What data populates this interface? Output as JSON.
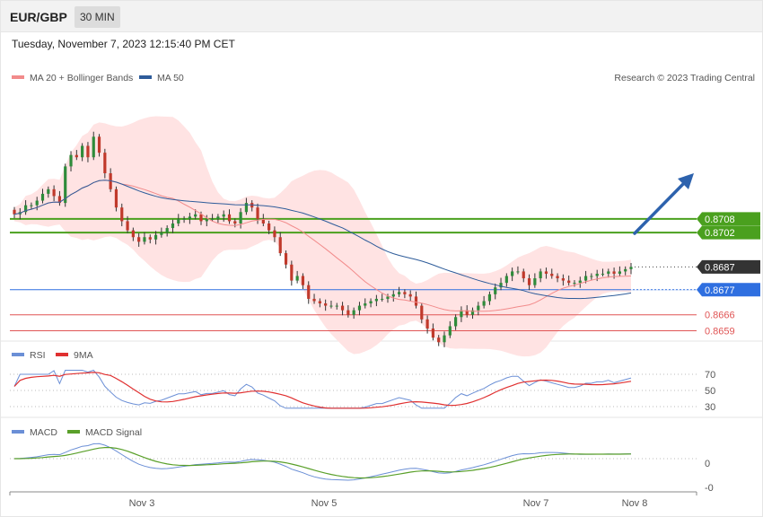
{
  "header": {
    "symbol": "EUR/GBP",
    "timeframe": "30 MIN",
    "datetime": "Tuesday, November 7, 2023 12:15:40 PM CET",
    "copyright": "Research © 2023 Trading Central"
  },
  "colors": {
    "bollinger": "#f28b8b",
    "band_fill": "#ffe3e3",
    "ma50": "#2e5c9a",
    "up": "#2e8b3a",
    "down": "#c0392b",
    "resistance": "#4aa01e",
    "support": "#e05555",
    "pivot": "#2f6fe0",
    "rsi": "#6b8fd6",
    "rsi_ma": "#e03030",
    "macd": "#6b8fd6",
    "macd_signal": "#5aa02a",
    "arrow": "#2d62ad"
  },
  "chart_data": [
    {
      "type": "candlestick",
      "panel": "price",
      "legend": [
        {
          "name": "MA 20 + Bollinger Bands",
          "color": "#f28b8b"
        },
        {
          "name": "MA 50",
          "color": "#2e5c9a"
        }
      ],
      "x_ticks": [
        "Nov 3",
        "Nov 5",
        "Nov 7",
        "Nov 8"
      ],
      "ylim": [
        0.86545,
        0.87685
      ],
      "levels": [
        {
          "value": 0.8708,
          "label": "0.8708",
          "kind": "resistance"
        },
        {
          "value": 0.8702,
          "label": "0.8702",
          "kind": "resistance"
        },
        {
          "value": 0.8687,
          "label": "0.8687",
          "kind": "last"
        },
        {
          "value": 0.8677,
          "label": "0.8677",
          "kind": "pivot"
        },
        {
          "value": 0.8666,
          "label": "0.8666",
          "kind": "support"
        },
        {
          "value": 0.8659,
          "label": "0.8659",
          "kind": "support"
        }
      ],
      "close": [
        0.871,
        0.8711,
        0.8714,
        0.8714,
        0.8716,
        0.8719,
        0.8721,
        0.8718,
        0.8715,
        0.8731,
        0.8736,
        0.8735,
        0.874,
        0.8735,
        0.8744,
        0.8737,
        0.8728,
        0.8721,
        0.8713,
        0.8707,
        0.8703,
        0.87,
        0.8698,
        0.87,
        0.8699,
        0.8701,
        0.8702,
        0.8704,
        0.8706,
        0.8708,
        0.8708,
        0.8709,
        0.871,
        0.8707,
        0.8708,
        0.8708,
        0.8709,
        0.871,
        0.8707,
        0.8706,
        0.8711,
        0.8715,
        0.8713,
        0.8708,
        0.8706,
        0.8703,
        0.87,
        0.8693,
        0.8688,
        0.8681,
        0.8683,
        0.8679,
        0.8673,
        0.8672,
        0.8671,
        0.867,
        0.867,
        0.867,
        0.8668,
        0.8666,
        0.8668,
        0.867,
        0.8671,
        0.8672,
        0.8673,
        0.8673,
        0.8674,
        0.8675,
        0.8676,
        0.8675,
        0.8674,
        0.867,
        0.8664,
        0.866,
        0.8656,
        0.8654,
        0.8657,
        0.8661,
        0.8665,
        0.8668,
        0.8666,
        0.8668,
        0.867,
        0.8672,
        0.8675,
        0.8678,
        0.868,
        0.8683,
        0.8685,
        0.8685,
        0.8682,
        0.8679,
        0.8682,
        0.8685,
        0.8684,
        0.8683,
        0.8682,
        0.8681,
        0.868,
        0.868,
        0.8681,
        0.8683,
        0.8683,
        0.8684,
        0.8684,
        0.8685,
        0.8684,
        0.8685,
        0.8686,
        0.8687
      ],
      "open_offset": [
        0.0002,
        -0.0001,
        -0.0003,
        0.0,
        -0.0002,
        -0.0003,
        -0.0002,
        0.0003,
        0.0003,
        -0.0016,
        -0.0005,
        0.0001,
        -0.0005,
        0.0005,
        -0.0009,
        0.0007,
        0.0009,
        0.0007,
        0.0008,
        0.0006,
        0.0004,
        0.0003,
        0.0002,
        -0.0002,
        0.0001,
        -0.0002,
        -0.0001,
        -0.0002,
        -0.0002,
        -0.0002,
        0.0,
        -0.0001,
        -0.0001,
        0.0003,
        -0.0001,
        0.0,
        -0.0001,
        -0.0001,
        0.0003,
        0.0001,
        -0.0005,
        -0.0004,
        0.0002,
        0.0005,
        0.0002,
        0.0003,
        0.0003,
        0.0007,
        0.0005,
        0.0007,
        -0.0002,
        0.0004,
        0.0006,
        0.0001,
        0.0001,
        0.0001,
        0.0,
        0.0,
        0.0002,
        0.0002,
        -0.0002,
        -0.0002,
        -0.0001,
        -0.0001,
        -0.0001,
        0.0,
        -0.0001,
        -0.0001,
        -0.0001,
        0.0001,
        0.0001,
        0.0004,
        0.0006,
        0.0004,
        0.0004,
        0.0002,
        -0.0003,
        -0.0004,
        -0.0004,
        -0.0003,
        0.0002,
        -0.0002,
        -0.0002,
        -0.0002,
        -0.0003,
        -0.0003,
        -0.0002,
        -0.0003,
        -0.0002,
        0.0,
        0.0003,
        0.0003,
        -0.0003,
        -0.0003,
        0.0001,
        0.0001,
        0.0001,
        0.0001,
        0.0001,
        0.0,
        -0.0001,
        -0.0002,
        0.0,
        -0.0001,
        0.0,
        -0.0001,
        0.0001,
        -0.0001,
        -0.0001,
        -0.0001
      ]
    },
    {
      "type": "line",
      "panel": "rsi",
      "series": [
        {
          "name": "RSI"
        },
        {
          "name": "9MA"
        }
      ],
      "y_ticks": [
        "70",
        "50",
        "30"
      ],
      "ylim": [
        25,
        75
      ]
    },
    {
      "type": "line",
      "panel": "macd",
      "series": [
        {
          "name": "MACD"
        },
        {
          "name": "MACD Signal"
        }
      ],
      "y_ticks": [
        "0",
        "-0"
      ]
    }
  ]
}
